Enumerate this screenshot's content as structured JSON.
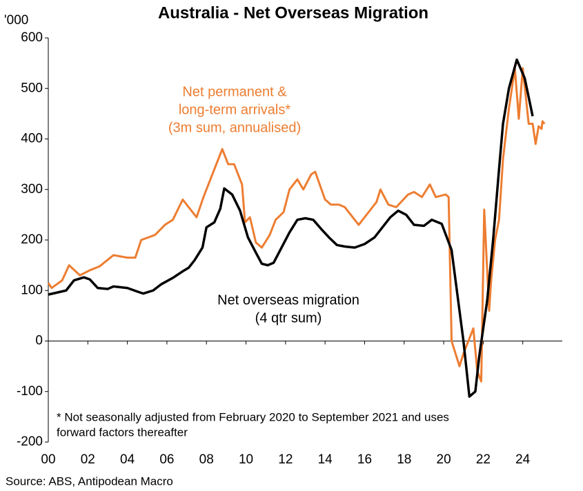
{
  "chart_data": {
    "type": "line",
    "title": "Australia - Net Overseas Migration",
    "y_unit": "'000",
    "xlim": [
      2000,
      2026
    ],
    "xticks": [
      {
        "value": 2000,
        "label": "00"
      },
      {
        "value": 2002,
        "label": "02"
      },
      {
        "value": 2004,
        "label": "04"
      },
      {
        "value": 2006,
        "label": "06"
      },
      {
        "value": 2008,
        "label": "08"
      },
      {
        "value": 2010,
        "label": "10"
      },
      {
        "value": 2012,
        "label": "12"
      },
      {
        "value": 2014,
        "label": "14"
      },
      {
        "value": 2016,
        "label": "16"
      },
      {
        "value": 2018,
        "label": "18"
      },
      {
        "value": 2020,
        "label": "20"
      },
      {
        "value": 2022,
        "label": "22"
      },
      {
        "value": 2024,
        "label": "24"
      }
    ],
    "ylim": [
      -200,
      600
    ],
    "yticks": [
      -200,
      -100,
      0,
      100,
      200,
      300,
      400,
      500,
      600
    ],
    "series": [
      {
        "color": "#ed7d31",
        "annotation": [
          "Net permanent &",
          "long-term arrivals*",
          "(3m sum, annualised)"
        ],
        "x": [
          2000.0,
          2000.17,
          2000.7,
          2001.05,
          2001.6,
          2002.1,
          2002.6,
          2003.3,
          2004.0,
          2004.4,
          2004.7,
          2005.4,
          2005.9,
          2006.3,
          2006.8,
          2007.5,
          2007.85,
          2008.8,
          2009.1,
          2009.4,
          2009.8,
          2009.95,
          2010.2,
          2010.5,
          2010.8,
          2011.2,
          2011.5,
          2011.9,
          2012.2,
          2012.6,
          2012.9,
          2013.3,
          2013.5,
          2014.0,
          2014.3,
          2014.7,
          2015.0,
          2015.4,
          2015.7,
          2016.1,
          2016.6,
          2016.8,
          2017.2,
          2017.6,
          2018.2,
          2018.5,
          2018.9,
          2019.3,
          2019.6,
          2020.1,
          2020.25,
          2020.4,
          2020.8,
          2021.0,
          2021.5,
          2021.7,
          2021.9,
          2022.05,
          2022.3,
          2022.4,
          2022.6,
          2022.8,
          2023.0,
          2023.3,
          2023.6,
          2023.8,
          2024.0,
          2024.3,
          2024.5,
          2024.65,
          2024.8,
          2024.95,
          2025.0,
          2025.1
        ],
        "values": [
          115,
          105,
          120,
          150,
          130,
          140,
          148,
          170,
          165,
          165,
          200,
          210,
          230,
          240,
          280,
          245,
          285,
          380,
          350,
          350,
          310,
          235,
          245,
          195,
          185,
          210,
          240,
          255,
          300,
          320,
          300,
          330,
          335,
          280,
          270,
          270,
          265,
          245,
          230,
          250,
          275,
          300,
          270,
          265,
          290,
          295,
          285,
          310,
          285,
          290,
          285,
          0,
          -50,
          -25,
          25,
          -60,
          -80,
          260,
          60,
          120,
          200,
          240,
          360,
          460,
          540,
          440,
          540,
          430,
          430,
          390,
          425,
          420,
          435,
          430
        ]
      },
      {
        "color": "#000000",
        "annotation": [
          "Net overseas migration",
          "(4 qtr sum)"
        ],
        "x": [
          2000.0,
          2000.9,
          2001.3,
          2001.8,
          2002.1,
          2002.5,
          2003.0,
          2003.3,
          2004.0,
          2004.5,
          2004.8,
          2005.3,
          2005.7,
          2006.3,
          2006.8,
          2007.1,
          2007.4,
          2007.8,
          2008.0,
          2008.4,
          2008.7,
          2008.9,
          2009.3,
          2009.7,
          2010.1,
          2010.5,
          2010.8,
          2011.1,
          2011.4,
          2011.8,
          2012.2,
          2012.6,
          2013.0,
          2013.4,
          2013.8,
          2014.2,
          2014.6,
          2015.0,
          2015.5,
          2016.0,
          2016.5,
          2016.9,
          2017.3,
          2017.7,
          2018.1,
          2018.5,
          2019.0,
          2019.4,
          2019.9,
          2020.4,
          2020.8,
          2021.0,
          2021.3,
          2021.6,
          2021.8,
          2022.2,
          2022.5,
          2022.8,
          2023.0,
          2023.3,
          2023.7,
          2024.1,
          2024.5
        ],
        "values": [
          92,
          100,
          120,
          126,
          122,
          105,
          103,
          108,
          105,
          98,
          94,
          100,
          112,
          125,
          138,
          145,
          160,
          185,
          225,
          235,
          262,
          302,
          290,
          258,
          205,
          175,
          153,
          150,
          155,
          185,
          215,
          240,
          243,
          240,
          222,
          205,
          190,
          187,
          185,
          192,
          205,
          225,
          245,
          258,
          250,
          230,
          228,
          240,
          232,
          180,
          60,
          0,
          -110,
          -100,
          -30,
          80,
          200,
          340,
          430,
          500,
          557,
          520,
          445
        ]
      }
    ],
    "footnote": [
      "* Not seasonally adjusted from February 2020 to September 2021 and uses",
      "forward factors thereafter"
    ],
    "source": "Source: ABS, Antipodean Macro"
  }
}
